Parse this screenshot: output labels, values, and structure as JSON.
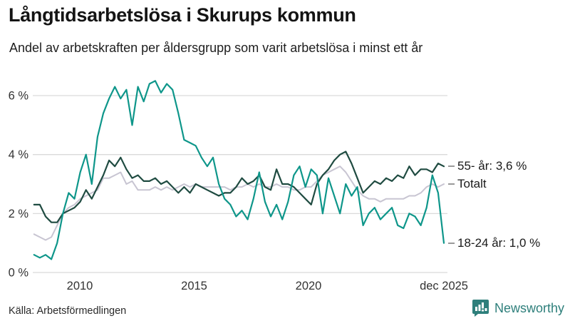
{
  "header": {
    "title": "Långtidsarbetslösa i Skurups kommun",
    "subtitle": "Andel av arbetskraften per åldersgrupp som varit arbetslösa i minst ett år"
  },
  "footer": {
    "source": "Källa: Arbetsförmedlingen",
    "brand": "Newsworthy",
    "brand_color": "#2e7f7b"
  },
  "colors": {
    "grid": "#dadada",
    "axis_text": "#333333",
    "annotation_dash": "#9a9a9a"
  },
  "chart_data": {
    "type": "line",
    "title": "Långtidsarbetslösa i Skurups kommun",
    "subtitle": "Andel av arbetskraften per åldersgrupp som varit arbetslösa i minst ett år",
    "unit": "% av arbetskraften",
    "x_start": 2008,
    "x_end": 2025.92,
    "points_per_series": 72,
    "ylim": [
      0,
      6.8
    ],
    "grid": true,
    "legend_position": "right-end-labels",
    "y_ticks": [
      {
        "v": 0,
        "label": "0 %"
      },
      {
        "v": 2,
        "label": "2 %"
      },
      {
        "v": 4,
        "label": "4 %"
      },
      {
        "v": 6,
        "label": "6 %"
      }
    ],
    "x_ticks": [
      {
        "year": 2010,
        "label": "2010"
      },
      {
        "year": 2015,
        "label": "2015"
      },
      {
        "year": 2020,
        "label": "2020"
      },
      {
        "year": 2025.92,
        "label": "dec 2025"
      }
    ],
    "series": [
      {
        "id": "totalt",
        "name": "Totalt",
        "color": "#c8c5d2",
        "width": 2,
        "end_label": "Totalt",
        "end_value": 3.0,
        "values": [
          1.3,
          1.2,
          1.1,
          1.2,
          1.6,
          2.0,
          2.2,
          2.3,
          2.5,
          2.6,
          2.7,
          2.8,
          3.2,
          3.2,
          3.3,
          3.4,
          3.0,
          3.1,
          2.8,
          2.8,
          2.8,
          2.9,
          2.8,
          2.9,
          2.8,
          2.9,
          3.0,
          2.9,
          3.0,
          2.9,
          2.9,
          2.9,
          2.9,
          2.9,
          2.8,
          2.9,
          2.9,
          3.0,
          2.9,
          3.0,
          2.9,
          2.9,
          3.0,
          2.9,
          2.9,
          2.8,
          2.8,
          2.9,
          2.9,
          3.1,
          3.3,
          3.4,
          3.5,
          3.6,
          3.4,
          3.1,
          2.8,
          2.6,
          2.5,
          2.5,
          2.4,
          2.5,
          2.5,
          2.5,
          2.5,
          2.6,
          2.6,
          2.7,
          2.9,
          3.0,
          2.9,
          3.0
        ]
      },
      {
        "id": "55-ar",
        "name": "55- år",
        "color": "#1f4b41",
        "width": 2.2,
        "end_label": "55- år: 3,6 %",
        "end_value": 3.6,
        "values": [
          2.3,
          2.3,
          1.9,
          1.7,
          1.7,
          2.0,
          2.1,
          2.2,
          2.4,
          2.8,
          2.5,
          2.9,
          3.3,
          3.8,
          3.6,
          3.9,
          3.5,
          3.2,
          3.3,
          3.1,
          3.1,
          3.2,
          3.0,
          3.1,
          2.9,
          2.7,
          2.9,
          2.7,
          3.0,
          2.9,
          2.8,
          2.7,
          2.6,
          2.7,
          2.7,
          2.9,
          3.2,
          3.0,
          3.1,
          3.3,
          2.9,
          2.8,
          3.5,
          3.0,
          3.0,
          2.9,
          2.7,
          2.5,
          2.3,
          3.0,
          3.3,
          3.5,
          3.8,
          4.0,
          4.1,
          3.7,
          3.2,
          2.7,
          2.9,
          3.1,
          3.0,
          3.2,
          3.1,
          3.3,
          3.2,
          3.6,
          3.3,
          3.5,
          3.5,
          3.4,
          3.7,
          3.6
        ]
      },
      {
        "id": "18-24-ar",
        "name": "18-24 år",
        "color": "#0e968a",
        "width": 2.2,
        "end_label": "18-24 år: 1,0 %",
        "end_value": 1.0,
        "values": [
          0.6,
          0.5,
          0.6,
          0.45,
          1.0,
          2.0,
          2.7,
          2.5,
          3.4,
          4.0,
          3.0,
          4.6,
          5.4,
          5.9,
          6.3,
          5.9,
          6.2,
          5.0,
          6.3,
          5.8,
          6.4,
          6.5,
          6.1,
          6.4,
          6.2,
          5.4,
          4.5,
          4.4,
          4.3,
          3.9,
          3.6,
          3.9,
          3.0,
          2.5,
          2.3,
          1.9,
          2.1,
          1.8,
          2.5,
          3.4,
          2.4,
          1.9,
          2.3,
          1.8,
          2.4,
          3.3,
          3.6,
          2.9,
          3.5,
          3.3,
          2.0,
          3.2,
          2.6,
          2.0,
          3.0,
          2.6,
          2.9,
          1.6,
          2.0,
          2.2,
          1.8,
          2.0,
          2.2,
          1.6,
          1.5,
          2.0,
          1.9,
          1.6,
          2.2,
          3.3,
          2.7,
          1.0
        ]
      }
    ]
  }
}
